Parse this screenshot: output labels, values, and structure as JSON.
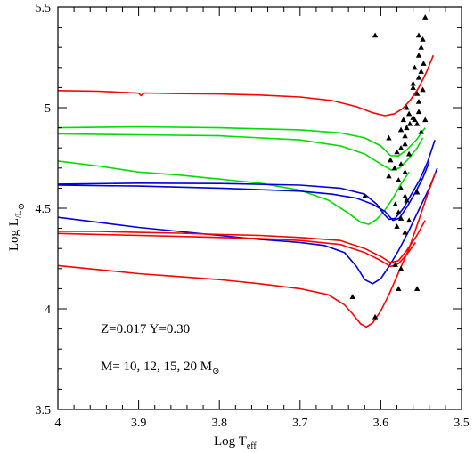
{
  "chart_data": {
    "type": "line",
    "xlabel_main": "Log T",
    "xlabel_sub": "eff",
    "ylabel_main": "Log L",
    "ylabel_sub": "/L",
    "ylabel_sun": "⊙",
    "xlim": [
      4.0,
      3.5
    ],
    "ylim": [
      3.5,
      5.5
    ],
    "x_inverted": true,
    "xticks": [
      4.0,
      3.9,
      3.8,
      3.7,
      3.6,
      3.5
    ],
    "xtick_labels": [
      "4",
      "3.9",
      "3.8",
      "3.7",
      "3.6",
      "3.5"
    ],
    "yticks": [
      3.5,
      4.0,
      4.5,
      5.0,
      5.5
    ],
    "ytick_labels": [
      "3.5",
      "4",
      "4.5",
      "5",
      "5.5"
    ],
    "grid": false,
    "annotations": {
      "composition": "Z=0.017 Y=0.30",
      "masses_prefix": "M= 10, 12, 15, 20 M",
      "masses_sun": "⊙"
    },
    "series": [
      {
        "color": "#ff0000",
        "points": [
          [
            4.0,
            5.085
          ],
          [
            3.95,
            5.082
          ],
          [
            3.9,
            5.072
          ],
          [
            3.897,
            5.06
          ],
          [
            3.893,
            5.073
          ],
          [
            3.85,
            5.07
          ],
          [
            3.8,
            5.068
          ],
          [
            3.75,
            5.063
          ],
          [
            3.7,
            5.053
          ],
          [
            3.66,
            5.035
          ],
          [
            3.63,
            5.005
          ],
          [
            3.61,
            4.975
          ],
          [
            3.595,
            4.96
          ],
          [
            3.583,
            4.97
          ],
          [
            3.573,
            4.995
          ],
          [
            3.563,
            5.04
          ],
          [
            3.553,
            5.1
          ],
          [
            3.543,
            5.18
          ],
          [
            3.535,
            5.26
          ]
        ]
      },
      {
        "color": "#00dd00",
        "points": [
          [
            4.0,
            4.9
          ],
          [
            3.9,
            4.905
          ],
          [
            3.8,
            4.9
          ],
          [
            3.7,
            4.89
          ],
          [
            3.65,
            4.875
          ],
          [
            3.62,
            4.85
          ],
          [
            3.6,
            4.81
          ],
          [
            3.588,
            4.762
          ],
          [
            3.578,
            4.76
          ],
          [
            3.568,
            4.79
          ],
          [
            3.556,
            4.84
          ],
          [
            3.545,
            4.9
          ]
        ]
      },
      {
        "color": "#00dd00",
        "points": [
          [
            4.0,
            4.87
          ],
          [
            3.9,
            4.865
          ],
          [
            3.8,
            4.86
          ],
          [
            3.7,
            4.84
          ],
          [
            3.65,
            4.81
          ],
          [
            3.62,
            4.77
          ],
          [
            3.6,
            4.72
          ],
          [
            3.587,
            4.69
          ],
          [
            3.577,
            4.7
          ],
          [
            3.567,
            4.74
          ],
          [
            3.555,
            4.8
          ],
          [
            3.548,
            4.85
          ]
        ]
      },
      {
        "color": "#00dd00",
        "points": [
          [
            4.0,
            4.735
          ],
          [
            3.95,
            4.71
          ],
          [
            3.9,
            4.68
          ],
          [
            3.85,
            4.665
          ],
          [
            3.8,
            4.645
          ],
          [
            3.75,
            4.625
          ],
          [
            3.7,
            4.59
          ],
          [
            3.665,
            4.54
          ],
          [
            3.64,
            4.475
          ],
          [
            3.625,
            4.43
          ],
          [
            3.615,
            4.42
          ],
          [
            3.605,
            4.445
          ],
          [
            3.595,
            4.49
          ],
          [
            3.585,
            4.55
          ],
          [
            3.575,
            4.62
          ],
          [
            3.565,
            4.68
          ]
        ]
      },
      {
        "color": "#0000dd",
        "points": [
          [
            4.0,
            4.62
          ],
          [
            3.9,
            4.625
          ],
          [
            3.8,
            4.623
          ],
          [
            3.7,
            4.615
          ],
          [
            3.65,
            4.6
          ],
          [
            3.62,
            4.57
          ],
          [
            3.605,
            4.52
          ],
          [
            3.596,
            4.47
          ],
          [
            3.59,
            4.445
          ],
          [
            3.582,
            4.45
          ],
          [
            3.572,
            4.5
          ],
          [
            3.562,
            4.57
          ],
          [
            3.552,
            4.64
          ],
          [
            3.542,
            4.73
          ],
          [
            3.533,
            4.84
          ]
        ]
      },
      {
        "color": "#0000dd",
        "points": [
          [
            4.0,
            4.615
          ],
          [
            3.9,
            4.61
          ],
          [
            3.8,
            4.6
          ],
          [
            3.7,
            4.585
          ],
          [
            3.66,
            4.57
          ],
          [
            3.63,
            4.55
          ],
          [
            3.61,
            4.52
          ],
          [
            3.595,
            4.485
          ],
          [
            3.585,
            4.44
          ],
          [
            3.577,
            4.45
          ],
          [
            3.567,
            4.51
          ],
          [
            3.557,
            4.58
          ],
          [
            3.548,
            4.65
          ],
          [
            3.54,
            4.73
          ]
        ]
      },
      {
        "color": "#0000dd",
        "points": [
          [
            4.0,
            4.455
          ],
          [
            3.95,
            4.43
          ],
          [
            3.9,
            4.405
          ],
          [
            3.85,
            4.385
          ],
          [
            3.8,
            4.365
          ],
          [
            3.75,
            4.345
          ],
          [
            3.7,
            4.33
          ],
          [
            3.67,
            4.315
          ],
          [
            3.645,
            4.28
          ],
          [
            3.63,
            4.21
          ],
          [
            3.62,
            4.145
          ],
          [
            3.61,
            4.125
          ],
          [
            3.6,
            4.15
          ],
          [
            3.59,
            4.21
          ],
          [
            3.578,
            4.29
          ],
          [
            3.565,
            4.39
          ],
          [
            3.552,
            4.5
          ],
          [
            3.54,
            4.6
          ],
          [
            3.53,
            4.7
          ]
        ]
      },
      {
        "color": "#ff0000",
        "points": [
          [
            4.0,
            4.385
          ],
          [
            3.95,
            4.385
          ],
          [
            3.9,
            4.38
          ],
          [
            3.85,
            4.376
          ],
          [
            3.8,
            4.37
          ],
          [
            3.75,
            4.365
          ],
          [
            3.7,
            4.355
          ],
          [
            3.65,
            4.34
          ],
          [
            3.62,
            4.3
          ],
          [
            3.6,
            4.26
          ],
          [
            3.588,
            4.23
          ],
          [
            3.578,
            4.24
          ],
          [
            3.568,
            4.29
          ],
          [
            3.556,
            4.36
          ],
          [
            3.545,
            4.44
          ]
        ]
      },
      {
        "color": "#ff0000",
        "points": [
          [
            4.0,
            4.375
          ],
          [
            3.95,
            4.37
          ],
          [
            3.9,
            4.365
          ],
          [
            3.85,
            4.36
          ],
          [
            3.8,
            4.355
          ],
          [
            3.75,
            4.35
          ],
          [
            3.7,
            4.34
          ],
          [
            3.65,
            4.32
          ],
          [
            3.62,
            4.28
          ],
          [
            3.6,
            4.24
          ],
          [
            3.588,
            4.21
          ],
          [
            3.578,
            4.225
          ],
          [
            3.568,
            4.27
          ],
          [
            3.557,
            4.33
          ]
        ]
      },
      {
        "color": "#ff0000",
        "points": [
          [
            4.0,
            4.215
          ],
          [
            3.95,
            4.195
          ],
          [
            3.9,
            4.175
          ],
          [
            3.85,
            4.16
          ],
          [
            3.8,
            4.145
          ],
          [
            3.75,
            4.125
          ],
          [
            3.7,
            4.1
          ],
          [
            3.665,
            4.07
          ],
          [
            3.645,
            4.02
          ],
          [
            3.635,
            3.975
          ],
          [
            3.625,
            3.925
          ],
          [
            3.618,
            3.91
          ],
          [
            3.61,
            3.93
          ],
          [
            3.6,
            3.99
          ],
          [
            3.59,
            4.07
          ],
          [
            3.578,
            4.18
          ],
          [
            3.565,
            4.3
          ],
          [
            3.553,
            4.44
          ],
          [
            3.542,
            4.57
          ],
          [
            3.532,
            4.68
          ]
        ]
      }
    ],
    "observed_stars": [
      [
        3.545,
        5.45
      ],
      [
        3.553,
        5.36
      ],
      [
        3.548,
        5.34
      ],
      [
        3.55,
        5.3
      ],
      [
        3.553,
        5.26
      ],
      [
        3.547,
        5.22
      ],
      [
        3.558,
        5.2
      ],
      [
        3.55,
        5.18
      ],
      [
        3.553,
        5.15
      ],
      [
        3.56,
        5.12
      ],
      [
        3.56,
        5.1
      ],
      [
        3.548,
        5.09
      ],
      [
        3.555,
        5.07
      ],
      [
        3.553,
        5.03
      ],
      [
        3.568,
        5.0
      ],
      [
        3.553,
        4.98
      ],
      [
        3.565,
        4.97
      ],
      [
        3.56,
        4.95
      ],
      [
        3.558,
        4.94
      ],
      [
        3.555,
        4.92
      ],
      [
        3.572,
        4.94
      ],
      [
        3.564,
        4.92
      ],
      [
        3.545,
        4.94
      ],
      [
        3.568,
        4.9
      ],
      [
        3.55,
        4.88
      ],
      [
        3.575,
        4.89
      ],
      [
        3.57,
        4.86
      ],
      [
        3.59,
        4.85
      ],
      [
        3.57,
        4.82
      ],
      [
        3.575,
        4.8
      ],
      [
        3.58,
        4.78
      ],
      [
        3.565,
        4.77
      ],
      [
        3.588,
        4.74
      ],
      [
        3.575,
        4.72
      ],
      [
        3.583,
        4.7
      ],
      [
        3.57,
        4.68
      ],
      [
        3.59,
        4.66
      ],
      [
        3.578,
        4.64
      ],
      [
        3.575,
        4.6
      ],
      [
        3.555,
        4.58
      ],
      [
        3.57,
        4.56
      ],
      [
        3.62,
        4.56
      ],
      [
        3.568,
        4.54
      ],
      [
        3.582,
        4.52
      ],
      [
        3.578,
        4.48
      ],
      [
        3.575,
        4.45
      ],
      [
        3.565,
        4.44
      ],
      [
        3.58,
        4.41
      ],
      [
        3.57,
        4.38
      ],
      [
        3.582,
        4.22
      ],
      [
        3.575,
        4.2
      ],
      [
        3.578,
        4.1
      ],
      [
        3.555,
        4.1
      ],
      [
        3.635,
        4.06
      ],
      [
        3.607,
        3.96
      ],
      [
        3.607,
        5.36
      ]
    ]
  }
}
